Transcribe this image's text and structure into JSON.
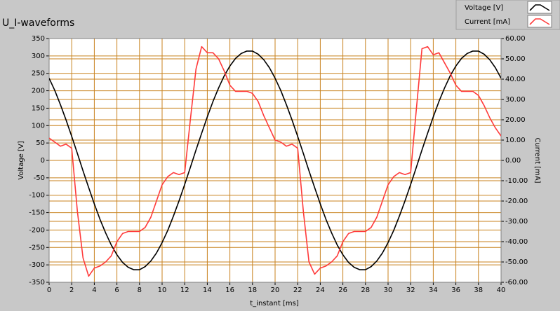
{
  "chart_data": {
    "type": "line",
    "title": "U_I-waveforms",
    "xlabel": "t_instant [ms]",
    "ylabel": "Voltage [V]",
    "y2label": "Current [mA]",
    "grid": true,
    "legend": "top-right",
    "x": [
      0,
      0.5,
      1,
      1.5,
      2,
      2.5,
      3,
      3.5,
      4,
      4.5,
      5,
      5.5,
      6,
      6.5,
      7,
      7.5,
      8,
      8.5,
      9,
      9.5,
      10,
      10.5,
      11,
      11.5,
      12,
      12.5,
      13,
      13.5,
      14,
      14.5,
      15,
      15.5,
      16,
      16.5,
      17,
      17.5,
      18,
      18.5,
      19,
      19.5,
      20,
      20.5,
      21,
      21.5,
      22,
      22.5,
      23,
      23.5,
      24,
      24.5,
      25,
      25.5,
      26,
      26.5,
      27,
      27.5,
      28,
      28.5,
      29,
      29.5,
      30,
      30.5,
      31,
      31.5,
      32,
      32.5,
      33,
      33.5,
      34,
      34.5,
      35,
      35.5,
      36,
      36.5,
      37,
      37.5,
      38,
      38.5,
      39,
      39.5,
      40
    ],
    "series": [
      {
        "name": "Voltage [V]",
        "color": "#000000",
        "values": [
          236,
          201,
          160,
          116,
          69,
          20,
          -30,
          -78,
          -125,
          -169,
          -208,
          -243,
          -271,
          -293,
          -307,
          -314,
          -314,
          -305,
          -289,
          -266,
          -236,
          -201,
          -160,
          -116,
          -69,
          -20,
          30,
          78,
          125,
          169,
          208,
          243,
          271,
          293,
          307,
          314,
          314,
          305,
          289,
          266,
          236,
          201,
          160,
          116,
          69,
          20,
          -30,
          -78,
          -125,
          -169,
          -208,
          -243,
          -271,
          -293,
          -307,
          -314,
          -314,
          -305,
          -289,
          -266,
          -236,
          -201,
          -160,
          -116,
          -69,
          -20,
          30,
          78,
          125,
          169,
          208,
          243,
          271,
          293,
          307,
          314,
          314,
          305,
          289,
          266,
          236
        ]
      },
      {
        "name": "Current [mA]",
        "color": "#ff3b3b",
        "axis": "y2",
        "values": [
          11,
          9,
          7,
          8,
          6,
          -25,
          -48,
          -57,
          -53,
          -52,
          -50,
          -47,
          -40,
          -36,
          -35,
          -35,
          -35,
          -33,
          -28,
          -20,
          -12,
          -8,
          -6,
          -7,
          -6,
          20,
          45,
          56,
          53,
          53,
          50,
          44,
          37,
          34,
          34,
          34,
          33,
          29,
          22,
          16,
          10,
          9,
          7,
          8,
          6,
          -25,
          -50,
          -56,
          -53,
          -52,
          -50,
          -47,
          -40,
          -36,
          -35,
          -35,
          -35,
          -33,
          -28,
          -20,
          -12,
          -8,
          -6,
          -7,
          -6,
          25,
          55,
          56,
          52,
          53,
          48,
          43,
          37,
          34,
          34,
          34,
          32,
          27,
          21,
          16,
          12
        ]
      }
    ],
    "xlim": [
      0,
      40
    ],
    "xticks": [
      0,
      2,
      4,
      6,
      8,
      10,
      12,
      14,
      16,
      18,
      20,
      22,
      24,
      26,
      28,
      30,
      32,
      34,
      36,
      38,
      40
    ],
    "ylim": [
      -350,
      350
    ],
    "yticks": [
      -350,
      -300,
      -250,
      -200,
      -150,
      -100,
      -50,
      0,
      50,
      100,
      150,
      200,
      250,
      300,
      350
    ],
    "y2lim": [
      -60,
      60
    ],
    "y2ticks": [
      {
        "value": -60,
        "label": "-60.00"
      },
      {
        "value": -50,
        "label": "-50.00"
      },
      {
        "value": -40,
        "label": "-40.00"
      },
      {
        "value": -30,
        "label": "-30.00"
      },
      {
        "value": -20,
        "label": "-20.00"
      },
      {
        "value": -10,
        "label": "-10.00"
      },
      {
        "value": 0,
        "label": "0.00"
      },
      {
        "value": 10,
        "label": "10.00"
      },
      {
        "value": 20,
        "label": "20.00"
      },
      {
        "value": 30,
        "label": "30.00"
      },
      {
        "value": 40,
        "label": "40.00"
      },
      {
        "value": 50,
        "label": "50.00"
      },
      {
        "value": 60,
        "label": "60.00"
      }
    ]
  }
}
